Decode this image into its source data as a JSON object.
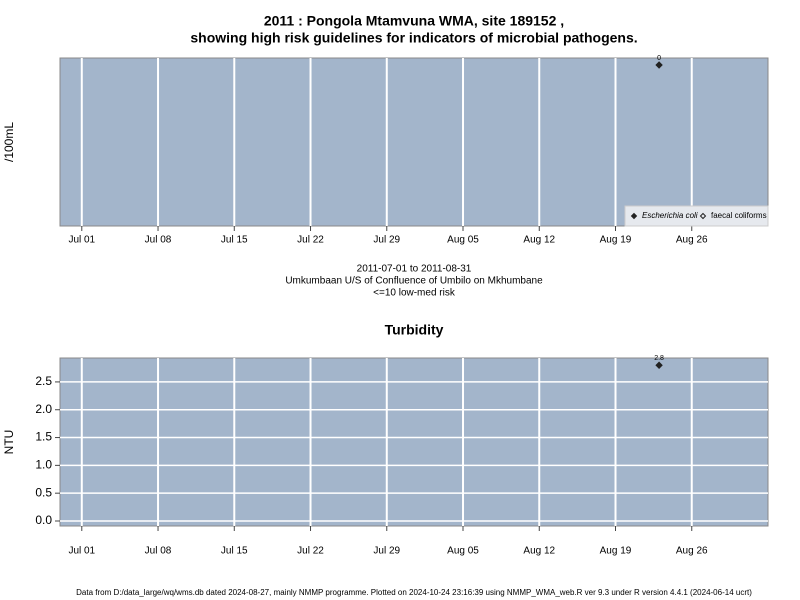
{
  "chart_data": [
    {
      "type": "scatter",
      "title": [
        "2011 : Pongola Mtamvuna WMA, site 189152 ,",
        "showing high risk guidelines for indicators of microbial pathogens."
      ],
      "ylabel": "/100mL",
      "xlabel": [
        "2011-07-01 to 2011-08-31",
        "Umkumbaan U/S of Confluence of Umbilo on Mkhumbane",
        "<=10 low-med risk"
      ],
      "xlim": [
        "2011-06-29",
        "2011-09-02"
      ],
      "xticks": [
        {
          "value": "2011-07-01",
          "label": "Jul 01"
        },
        {
          "value": "2011-07-08",
          "label": "Jul 08"
        },
        {
          "value": "2011-07-15",
          "label": "Jul 15"
        },
        {
          "value": "2011-07-22",
          "label": "Jul 22"
        },
        {
          "value": "2011-07-29",
          "label": "Jul 29"
        },
        {
          "value": "2011-08-05",
          "label": "Aug 05"
        },
        {
          "value": "2011-08-12",
          "label": "Aug 12"
        },
        {
          "value": "2011-08-19",
          "label": "Aug 19"
        },
        {
          "value": "2011-08-26",
          "label": "Aug 26"
        }
      ],
      "ylim": [
        -4.6,
        0.2
      ],
      "yticks": [],
      "grid": [
        "x"
      ],
      "legend": "bottom-right",
      "series": [
        {
          "name": "Escherichia coli",
          "color": "#222222",
          "marker": "filled",
          "x": [
            "2011-08-23"
          ],
          "values": [
            0
          ]
        },
        {
          "name": "faecal coliforms",
          "color": "#222222",
          "marker": "open",
          "x": [],
          "values": []
        }
      ]
    },
    {
      "type": "scatter",
      "title": [
        "Turbidity"
      ],
      "ylabel": "NTU",
      "xlim": [
        "2011-06-29",
        "2011-09-02"
      ],
      "xticks": [
        {
          "value": "2011-07-01",
          "label": "Jul 01"
        },
        {
          "value": "2011-07-08",
          "label": "Jul 08"
        },
        {
          "value": "2011-07-15",
          "label": "Jul 15"
        },
        {
          "value": "2011-07-22",
          "label": "Jul 22"
        },
        {
          "value": "2011-07-29",
          "label": "Jul 29"
        },
        {
          "value": "2011-08-05",
          "label": "Aug 05"
        },
        {
          "value": "2011-08-12",
          "label": "Aug 12"
        },
        {
          "value": "2011-08-19",
          "label": "Aug 19"
        },
        {
          "value": "2011-08-26",
          "label": "Aug 26"
        }
      ],
      "ylim": [
        -0.09,
        2.93
      ],
      "yticks": [
        {
          "value": 0,
          "label": "0.0"
        },
        {
          "value": 0.5,
          "label": "0.5"
        },
        {
          "value": 1,
          "label": "1.0"
        },
        {
          "value": 1.5,
          "label": "1.5"
        },
        {
          "value": 2,
          "label": "2.0"
        },
        {
          "value": 2.5,
          "label": "2.5"
        }
      ],
      "grid": [
        "x",
        "y"
      ],
      "series": [
        {
          "color": "#222222",
          "marker": "filled",
          "x": [
            "2011-08-23"
          ],
          "values": [
            2.8
          ]
        }
      ]
    }
  ],
  "footer": "Data from D:/data_large/wq/wms.db dated 2024-08-27, mainly NMMP programme. Plotted on 2024-10-24 23:16:39 using NMMP_WMA_web.R ver 9.3 under R version 4.4.1 (2024-06-14 ucrt)"
}
